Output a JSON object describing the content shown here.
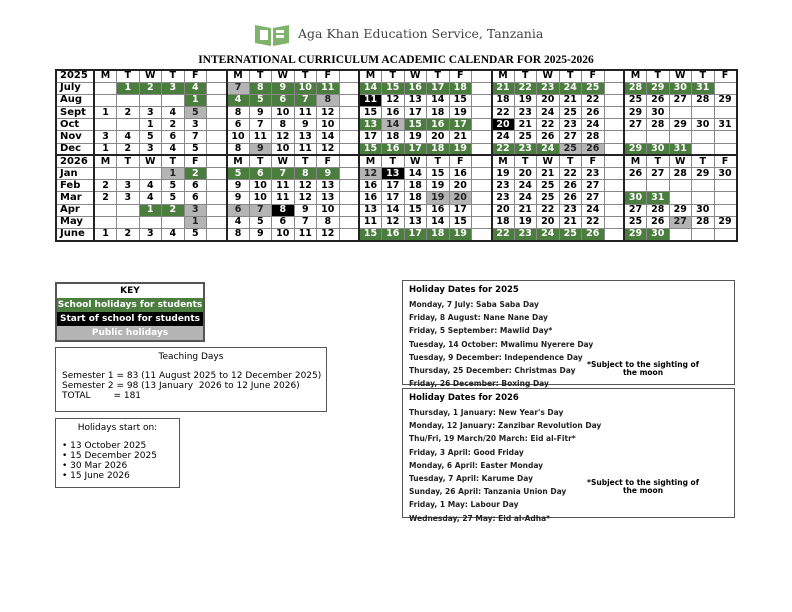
{
  "header": {
    "org": "Aga Khan Education Service, Tanzania",
    "title": "INTERNATIONAL CURRICULUM ACADEMIC CALENDAR FOR 2025-2026",
    "logo": "Aga Khan Education Service logo"
  },
  "colors": {
    "school_holiday": "#4a7d3e",
    "start_of_school": "#000000",
    "public_holiday": "#b4b4b4"
  },
  "calendar": {
    "legend_codes": {
      "h": "School holidays for students",
      "s": "Start of school for students",
      "p": "Public holidays"
    },
    "rows": [
      {
        "label": "2025",
        "header": true,
        "cells": [
          "M",
          "T",
          "W",
          "T",
          "F",
          "M",
          "T",
          "W",
          "T",
          "F",
          "M",
          "T",
          "W",
          "T",
          "F",
          "M",
          "T",
          "W",
          "T",
          "F",
          "M",
          "T",
          "W",
          "T",
          "F"
        ]
      },
      {
        "label": "July",
        "cells": [
          "",
          "1h",
          "2h",
          "3h",
          "4h",
          "7p",
          "8h",
          "9h",
          "10h",
          "11h",
          "14h",
          "15h",
          "16h",
          "17h",
          "18h",
          "21h",
          "22h",
          "23h",
          "24h",
          "25h",
          "28h",
          "29h",
          "30h",
          "31h",
          ""
        ]
      },
      {
        "label": "Aug",
        "cells": [
          "",
          "",
          "",
          "",
          "1h",
          "4h",
          "5h",
          "6h",
          "7h",
          "8p",
          "11s",
          "12",
          "13",
          "14",
          "15",
          "18",
          "19",
          "20",
          "21",
          "22",
          "25",
          "26",
          "27",
          "28",
          "29"
        ]
      },
      {
        "label": "Sept",
        "cells": [
          "1",
          "2",
          "3",
          "4",
          "5p",
          "8",
          "9",
          "10",
          "11",
          "12",
          "15",
          "16",
          "17",
          "18",
          "19",
          "22",
          "23",
          "24",
          "25",
          "26",
          "29",
          "30",
          "",
          "",
          ""
        ]
      },
      {
        "label": "Oct",
        "cells": [
          "",
          "",
          "1",
          "2",
          "3",
          "6",
          "7",
          "8",
          "9",
          "10",
          "13h",
          "14p",
          "15h",
          "16h",
          "17h",
          "20s",
          "21",
          "22",
          "23",
          "24",
          "27",
          "28",
          "29",
          "30",
          "31"
        ]
      },
      {
        "label": "Nov",
        "cells": [
          "3",
          "4",
          "5",
          "6",
          "7",
          "10",
          "11",
          "12",
          "13",
          "14",
          "17",
          "18",
          "19",
          "20",
          "21",
          "24",
          "25",
          "26",
          "27",
          "28",
          "",
          "",
          "",
          "",
          ""
        ]
      },
      {
        "label": "Dec",
        "cells": [
          "1",
          "2",
          "3",
          "4",
          "5",
          "8",
          "9p",
          "10",
          "11",
          "12",
          "15h",
          "16h",
          "17h",
          "18h",
          "19h",
          "22h",
          "23h",
          "24h",
          "25p",
          "26p",
          "29h",
          "30h",
          "31h",
          "",
          ""
        ]
      },
      {
        "label": "2026",
        "header": true,
        "cells": [
          "M",
          "T",
          "W",
          "T",
          "F",
          "M",
          "T",
          "W",
          "T",
          "F",
          "M",
          "T",
          "W",
          "T",
          "F",
          "M",
          "T",
          "W",
          "T",
          "F",
          "M",
          "T",
          "W",
          "T",
          "F"
        ]
      },
      {
        "label": "Jan",
        "cells": [
          "",
          "",
          "",
          "1p",
          "2h",
          "5h",
          "6h",
          "7h",
          "8h",
          "9h",
          "12p",
          "13s",
          "14",
          "15",
          "16",
          "19",
          "20",
          "21",
          "22",
          "23",
          "26",
          "27",
          "28",
          "29",
          "30"
        ]
      },
      {
        "label": "Feb",
        "cells": [
          "2",
          "3",
          "4",
          "5",
          "6",
          "9",
          "10",
          "11",
          "12",
          "13",
          "16",
          "17",
          "18",
          "19",
          "20",
          "23",
          "24",
          "25",
          "26",
          "27",
          "",
          "",
          "",
          "",
          ""
        ]
      },
      {
        "label": "Mar",
        "cells": [
          "2",
          "3",
          "4",
          "5",
          "6",
          "9",
          "10",
          "11",
          "12",
          "13",
          "16",
          "17",
          "18",
          "19p",
          "20p",
          "23",
          "24",
          "25",
          "26",
          "27",
          "30h",
          "31h",
          "",
          "",
          ""
        ]
      },
      {
        "label": "Apr",
        "cells": [
          "",
          "",
          "1h",
          "2h",
          "3p",
          "6p",
          "7p",
          "8s",
          "9",
          "10",
          "13",
          "14",
          "15",
          "16",
          "17",
          "20",
          "21",
          "22",
          "23",
          "24",
          "27",
          "28",
          "29",
          "30",
          ""
        ]
      },
      {
        "label": "May",
        "cells": [
          "",
          "",
          "",
          "",
          "1p",
          "4",
          "5",
          "6",
          "7",
          "8",
          "11",
          "12",
          "13",
          "14",
          "15",
          "18",
          "19",
          "20",
          "21",
          "22",
          "25",
          "26",
          "27p",
          "28",
          "29"
        ]
      },
      {
        "label": "June",
        "cells": [
          "1",
          "2",
          "3",
          "4",
          "5",
          "8",
          "9",
          "10",
          "11",
          "12",
          "15h",
          "16h",
          "17h",
          "18h",
          "19h",
          "22h",
          "23h",
          "24h",
          "25h",
          "26h",
          "29h",
          "30h",
          "",
          "",
          ""
        ]
      }
    ]
  },
  "key": {
    "title": "KEY",
    "items": [
      "School holidays for students",
      "Start of school for students",
      "Public holidays"
    ]
  },
  "teaching": {
    "title": "Teaching Days",
    "lines": [
      "Semester 1 = 83 (11 August 2025 to 12 December 2025)",
      "Semester 2 = 98 (13 January  2026 to 12 June 2026)",
      "TOTAL        = 181"
    ]
  },
  "holidays_start": {
    "title": "Holidays start on:",
    "items": [
      "• 13 October 2025",
      "• 15 December 2025",
      "• 30 Mar 2026",
      "• 15 June 2026"
    ]
  },
  "holidays_2025": {
    "title": "Holiday Dates for 2025",
    "items": [
      "Monday, 7 July: Saba Saba Day",
      "Friday, 8 August: Nane Nane Day",
      "Friday, 5 September: Mawlid Day*",
      "Tuesday, 14 October: Mwalimu Nyerere Day",
      "Tuesday, 9 December: Independence Day",
      "Thursday, 25 December: Christmas Day",
      "Friday, 26 December: Boxing Day"
    ],
    "note": "*Subject to the sighting of the moon"
  },
  "holidays_2026": {
    "title": "Holiday Dates for 2026",
    "items": [
      "Thursday, 1 January: New Year's  Day",
      "Monday, 12 January: Zanzibar Revolution Day",
      "Thu/Fri, 19 March/20 March: Eid al-Fitr*",
      "Friday, 3 April: Good Friday",
      "Monday, 6 April: Easter Monday",
      "Tuesday, 7 April: Karume Day",
      "Sunday, 26 April: Tanzania Union Day",
      "Friday, 1 May: Labour Day",
      "Wednesday,  27 May: Eid al-Adha*"
    ],
    "note": "*Subject to the sighting of the moon"
  }
}
